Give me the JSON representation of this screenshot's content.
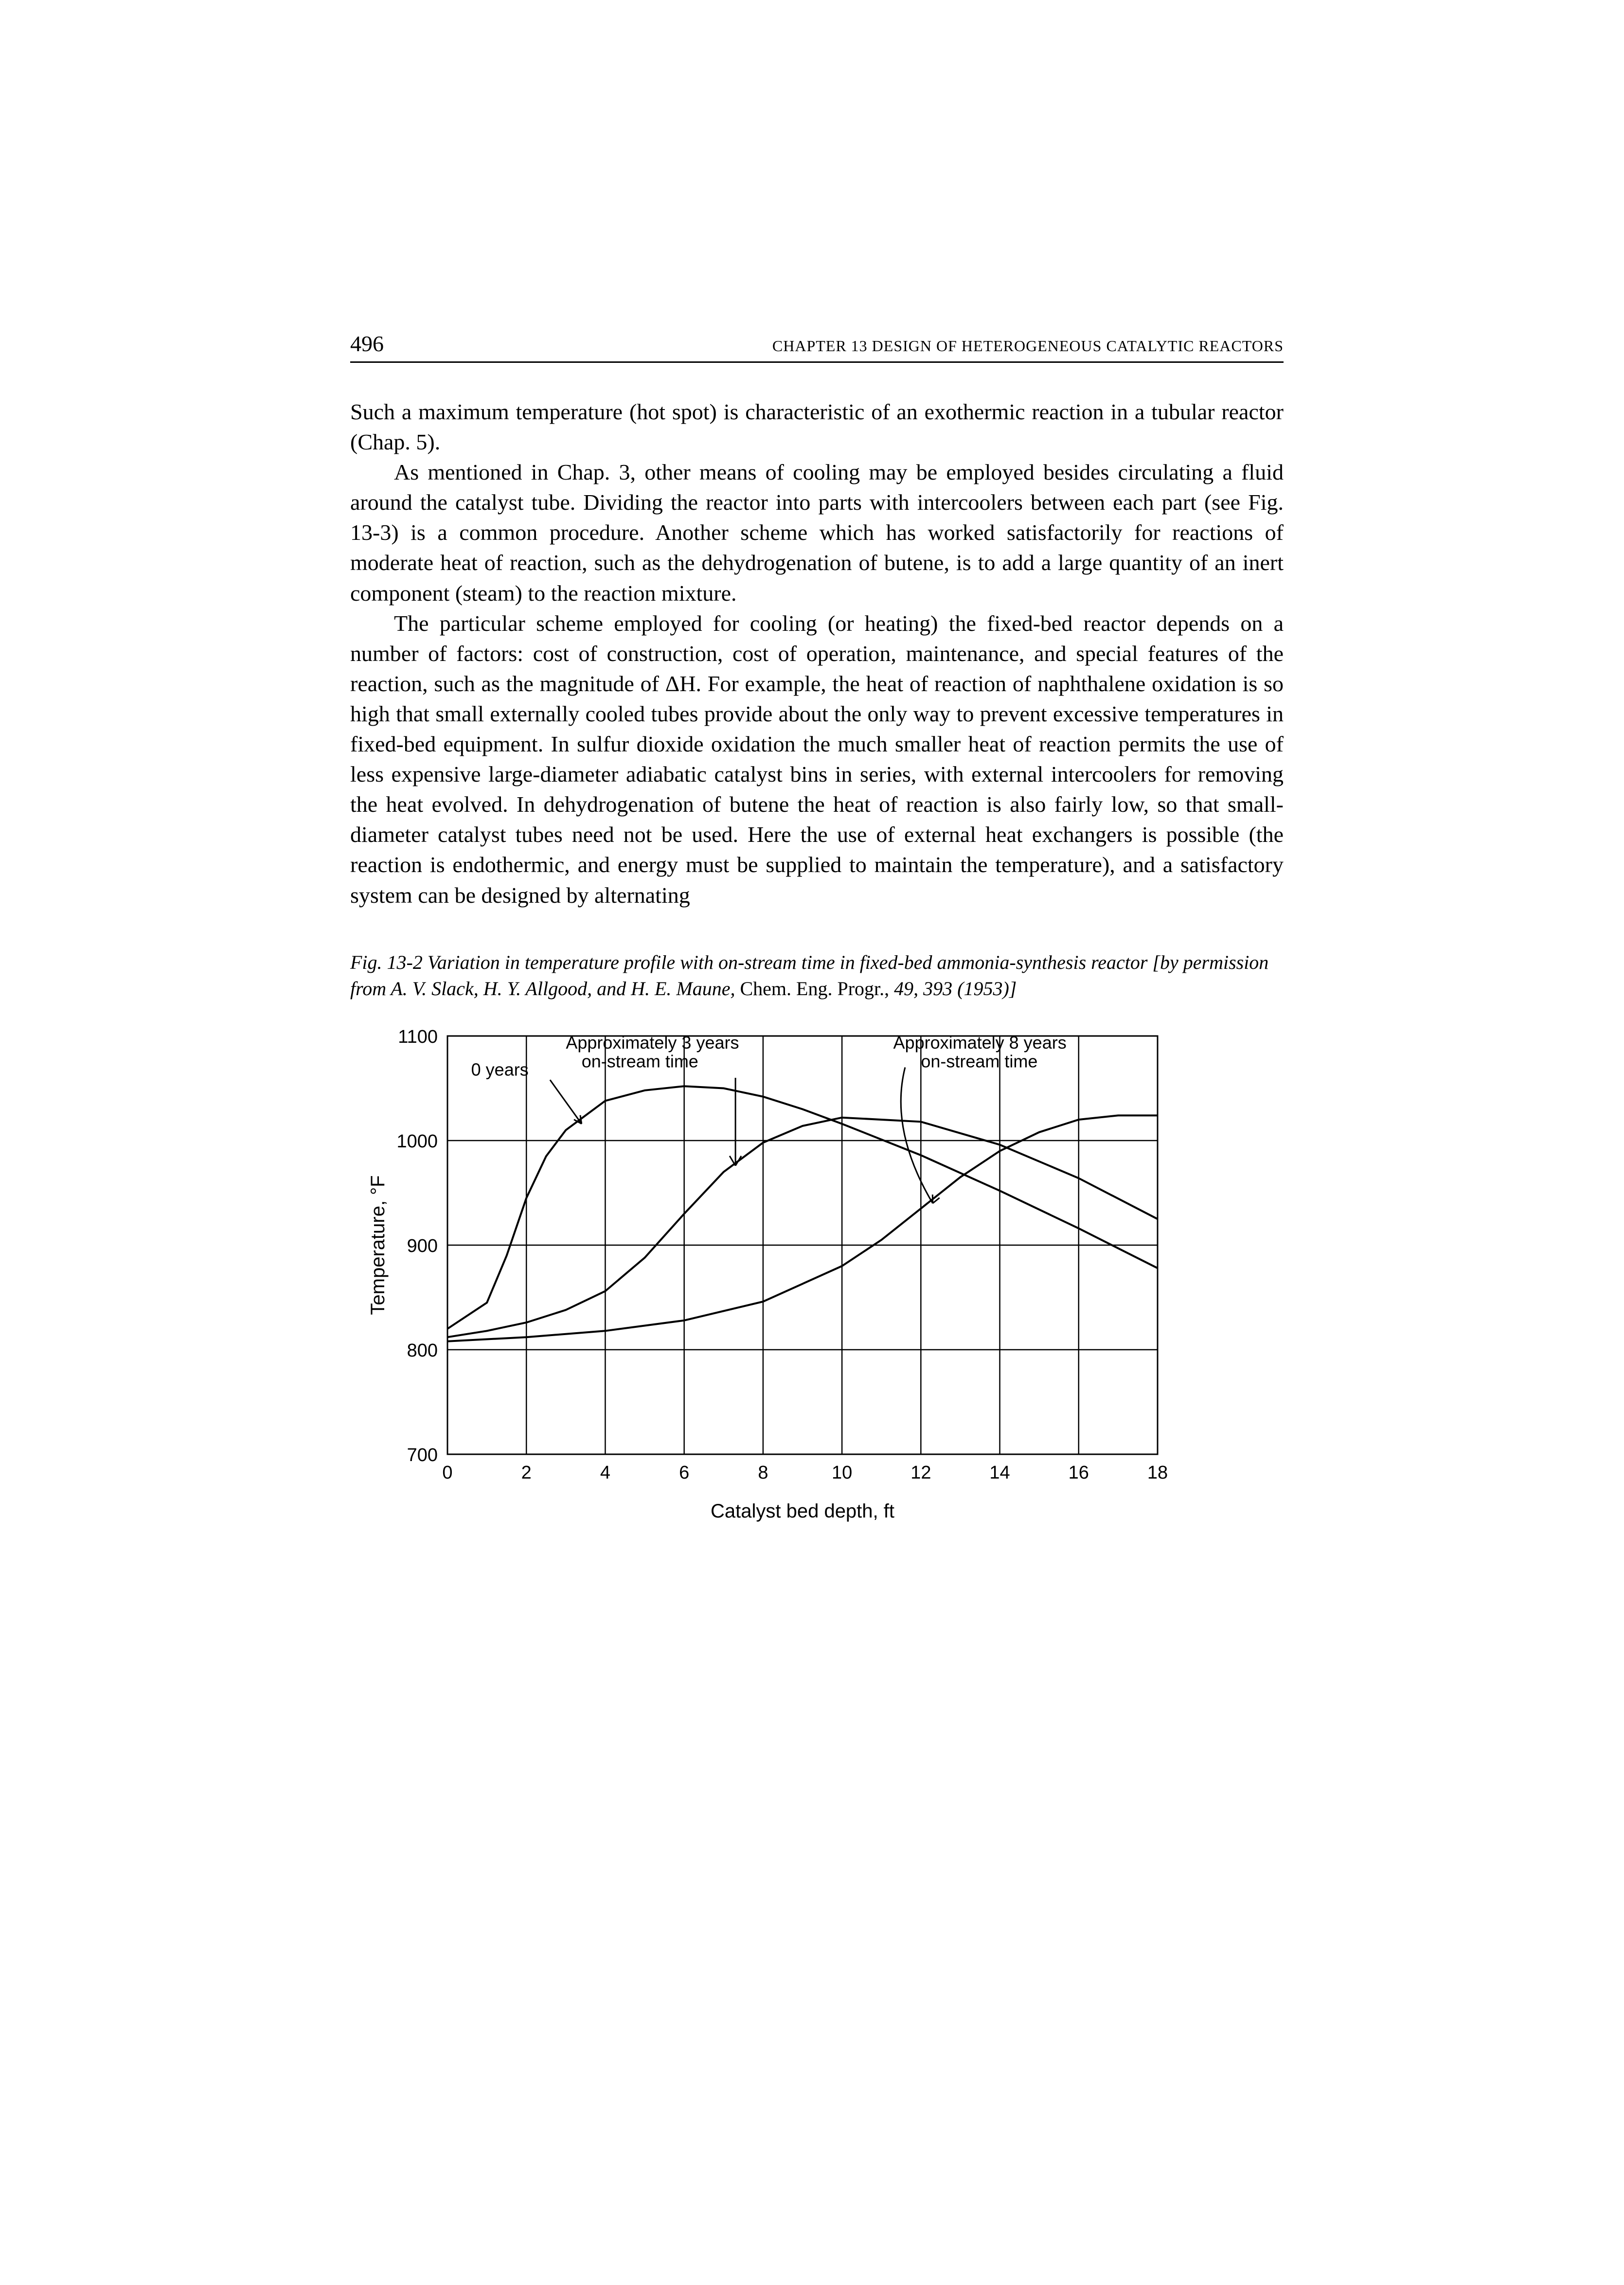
{
  "header": {
    "page_number": "496",
    "chapter_label": "CHAPTER 13   DESIGN OF HETEROGENEOUS CATALYTIC REACTORS"
  },
  "paragraphs": {
    "p1": "Such a maximum temperature (hot spot) is characteristic of an exothermic reaction in a tubular reactor (Chap. 5).",
    "p2": "As mentioned in Chap. 3, other means of cooling may be employed besides circulating a fluid around the catalyst tube. Dividing the reactor into parts with intercoolers between each part (see Fig. 13-3) is a common procedure. Another scheme which has worked satisfactorily for reactions of moderate heat of reaction, such as the dehydrogenation of butene, is to add a large quantity of an inert component (steam) to the reaction mixture.",
    "p3": "The particular scheme employed for cooling (or heating) the fixed-bed reactor depends on a number of factors: cost of construction, cost of operation, maintenance, and special features of the reaction, such as the magnitude of ΔH. For example, the heat of reaction of naphthalene oxidation is so high that small externally cooled tubes provide about the only way to prevent excessive temperatures in fixed-bed equipment. In sulfur dioxide oxidation the much smaller heat of reaction permits the use of less expensive large-diameter adiabatic catalyst bins in series, with external intercoolers for removing the heat evolved. In dehydrogenation of butene the heat of reaction is also fairly low, so that small-diameter catalyst tubes need not be used. Here the use of external heat exchangers is possible (the reaction is endothermic, and energy must be supplied to maintain the temperature), and a satisfactory system can be designed by alternating"
  },
  "figure": {
    "caption_lead": "Fig. 13-2   Variation in temperature profile with on-stream time in fixed-bed ammonia-synthesis reactor",
    "caption_bracket": " [by permission from A. V. Slack, H. Y. Allgood, and H. E. Maune, ",
    "caption_journal": "Chem. Eng. Progr., ",
    "caption_cite": "49, 393 (1953)]",
    "chart": {
      "type": "line",
      "xlabel": "Catalyst bed depth, ft",
      "ylabel": "Temperature, °F",
      "xlim": [
        0,
        18
      ],
      "ylim": [
        700,
        1100
      ],
      "xticks": [
        0,
        2,
        4,
        6,
        8,
        10,
        12,
        14,
        16,
        18
      ],
      "yticks": [
        700,
        800,
        900,
        1000,
        1100
      ],
      "tick_fontsize": 38,
      "label_fontsize": 40,
      "annotation_fontsize": 36,
      "background_color": "#ffffff",
      "axis_color": "#000000",
      "grid_color": "#000000",
      "curve_color": "#000000",
      "annotations": {
        "zero_years": "0 years",
        "three_years_l1": "Approximately 3 years",
        "three_years_l2": "on-stream time",
        "eight_years_l1": "Approximately 8 years",
        "eight_years_l2": "on-stream time"
      },
      "series": [
        {
          "name": "0 years",
          "x": [
            0,
            1,
            1.5,
            2,
            2.5,
            3,
            4,
            5,
            6,
            7,
            8,
            9,
            10,
            12,
            14,
            16,
            18
          ],
          "y": [
            820,
            845,
            890,
            945,
            985,
            1010,
            1038,
            1048,
            1052,
            1050,
            1042,
            1030,
            1016,
            986,
            952,
            916,
            878
          ]
        },
        {
          "name": "3 years",
          "x": [
            0,
            1,
            2,
            3,
            4,
            5,
            6,
            7,
            8,
            9,
            10,
            12,
            14,
            16,
            18
          ],
          "y": [
            812,
            818,
            826,
            838,
            856,
            888,
            930,
            970,
            998,
            1014,
            1022,
            1018,
            996,
            964,
            925
          ]
        },
        {
          "name": "8 years",
          "x": [
            0,
            2,
            4,
            6,
            8,
            10,
            11,
            12,
            13,
            14,
            15,
            16,
            17,
            18
          ],
          "y": [
            808,
            812,
            818,
            828,
            846,
            880,
            905,
            935,
            965,
            990,
            1008,
            1020,
            1024,
            1024
          ]
        }
      ]
    }
  }
}
